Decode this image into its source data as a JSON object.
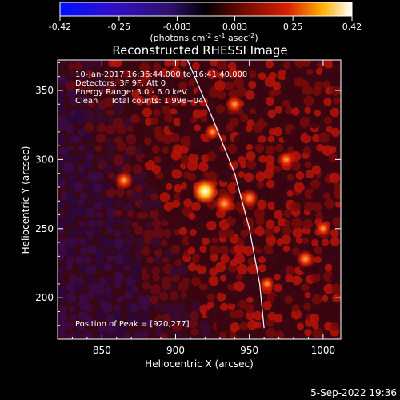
{
  "chart_data": {
    "type": "heatmap",
    "title": "Reconstructed RHESSI Image",
    "xlabel": "Heliocentric X (arcsec)",
    "ylabel": "Heliocentric Y (arcsec)",
    "xlim": [
      820,
      1012
    ],
    "ylim": [
      170,
      372
    ],
    "x_ticks": [
      850,
      900,
      950,
      1000
    ],
    "y_ticks": [
      200,
      250,
      300,
      350
    ],
    "colorbar": {
      "min": -0.42,
      "max": 0.42,
      "ticks": [
        "-0.42",
        "-0.25",
        "-0.083",
        "0.083",
        "0.25",
        "0.42"
      ],
      "tick_values": [
        -0.42,
        -0.25,
        -0.083,
        0.083,
        0.25,
        0.42
      ],
      "unit_main": "(photons cm",
      "unit_exp1": "-2",
      "unit_s": " s",
      "unit_exp2": "-1",
      "unit_asec": " asec",
      "unit_exp3": "-2",
      "unit_close": ")"
    },
    "annotations": {
      "time": "10-Jan-2017 16:36:44.000 to 16:41:40.000",
      "detectors": "Detectors: 3F 9F, Att 0",
      "energy": "Energy Range: 3.0 - 6.0 keV",
      "clean": "Clean     Total counts: 1.99e+04",
      "peak": "Position of Peak = [920,277]"
    },
    "peak": [
      920,
      277
    ],
    "sources": [
      {
        "x": 920,
        "y": 277,
        "value": 0.42
      },
      {
        "x": 933,
        "y": 268,
        "value": 0.3
      },
      {
        "x": 950,
        "y": 272,
        "value": 0.25
      },
      {
        "x": 865,
        "y": 285,
        "value": 0.25
      },
      {
        "x": 988,
        "y": 228,
        "value": 0.24
      },
      {
        "x": 940,
        "y": 340,
        "value": 0.22
      },
      {
        "x": 975,
        "y": 300,
        "value": 0.2
      },
      {
        "x": 925,
        "y": 320,
        "value": 0.18
      },
      {
        "x": 1000,
        "y": 250,
        "value": 0.18
      },
      {
        "x": 962,
        "y": 210,
        "value": 0.17
      }
    ],
    "limb": [
      [
        908,
        372
      ],
      [
        925,
        330
      ],
      [
        940,
        290
      ],
      [
        950,
        250
      ],
      [
        957,
        210
      ],
      [
        960,
        178
      ]
    ],
    "timestamp": "5-Sep-2022 19:36"
  }
}
